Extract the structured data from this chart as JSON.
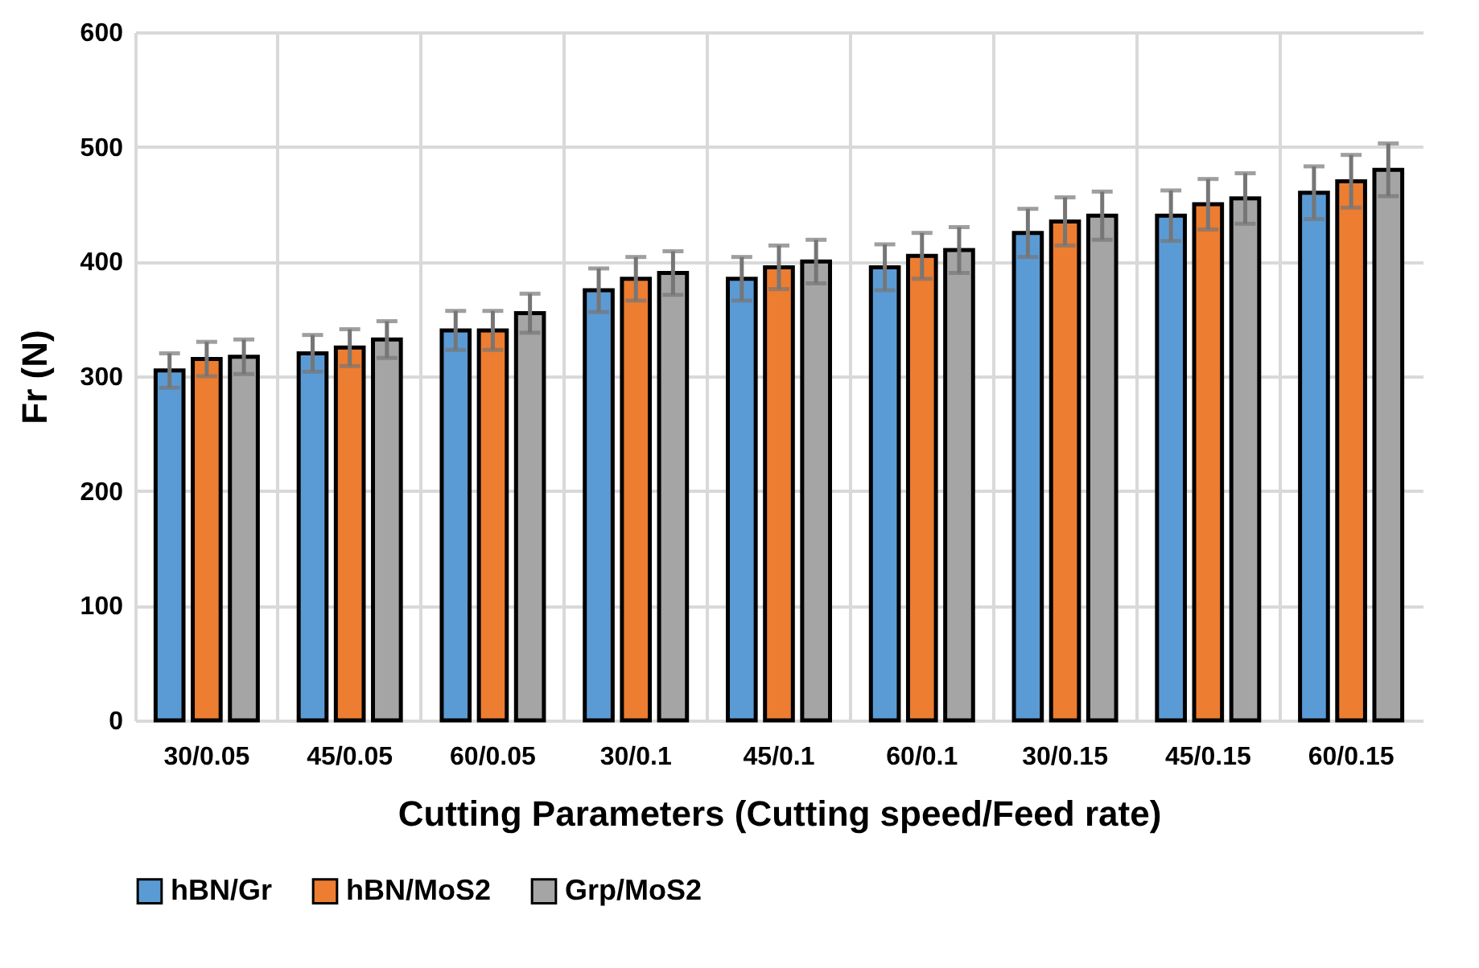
{
  "chart_data": {
    "type": "bar",
    "xlabel": "Cutting Parameters (Cutting speed/Feed rate)",
    "ylabel": "Fr (N)",
    "categories": [
      "30/0.05",
      "45/0.05",
      "60/0.05",
      "30/0.1",
      "45/0.1",
      "60/0.1",
      "30/0.15",
      "45/0.15",
      "60/0.15"
    ],
    "series": [
      {
        "name": "hBN/Gr",
        "color": "#5b9bd5",
        "values": [
          305,
          320,
          340,
          375,
          385,
          395,
          425,
          440,
          460
        ],
        "errors": [
          15,
          16,
          17,
          19,
          19,
          20,
          21,
          22,
          23
        ]
      },
      {
        "name": "hBN/MoS2",
        "color": "#ed7d31",
        "values": [
          315,
          325,
          340,
          385,
          395,
          405,
          435,
          450,
          470
        ],
        "errors": [
          15,
          16,
          17,
          19,
          19,
          20,
          21,
          22,
          23
        ]
      },
      {
        "name": "Grp/MoS2",
        "color": "#a5a5a5",
        "values": [
          317,
          332,
          355,
          390,
          400,
          410,
          440,
          455,
          480
        ],
        "errors": [
          15,
          16,
          17,
          19,
          19,
          20,
          21,
          22,
          23
        ]
      }
    ],
    "ylim": [
      0,
      600
    ],
    "yticks": [
      0,
      100,
      200,
      300,
      400,
      500,
      600
    ],
    "grid": true,
    "legend": "bottom"
  }
}
